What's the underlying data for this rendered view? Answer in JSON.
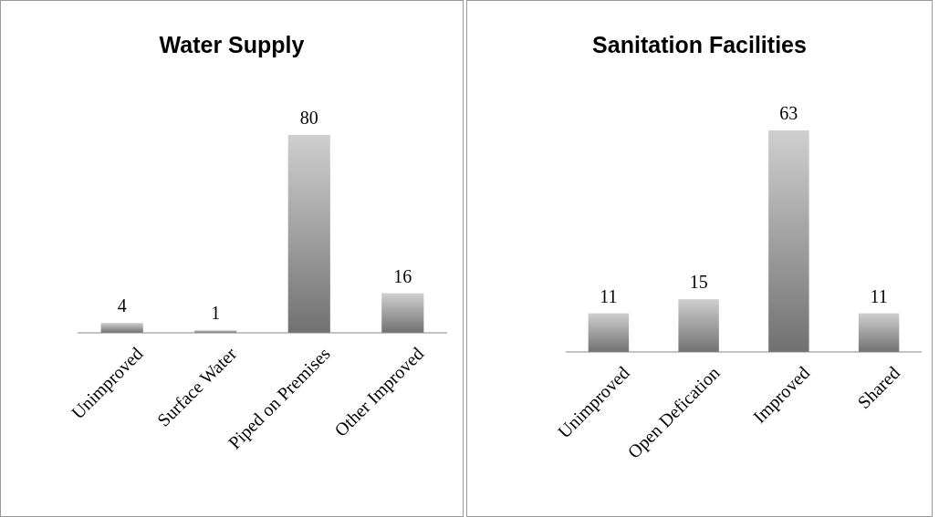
{
  "chart_data": [
    {
      "type": "bar",
      "title": "Water Supply",
      "categories": [
        "Unimproved",
        "Surface Water",
        "Piped on Premises",
        "Other Improved"
      ],
      "values": [
        4,
        1,
        80,
        16
      ],
      "color": "#8c8c8c",
      "data_labels": true
    },
    {
      "type": "bar",
      "title": "Sanitation Facilities",
      "categories": [
        "Unimproved",
        "Open Defication",
        "Improved",
        "Shared"
      ],
      "values": [
        11,
        15,
        63,
        11
      ],
      "color": "#8c8c8c",
      "data_labels": true
    }
  ]
}
